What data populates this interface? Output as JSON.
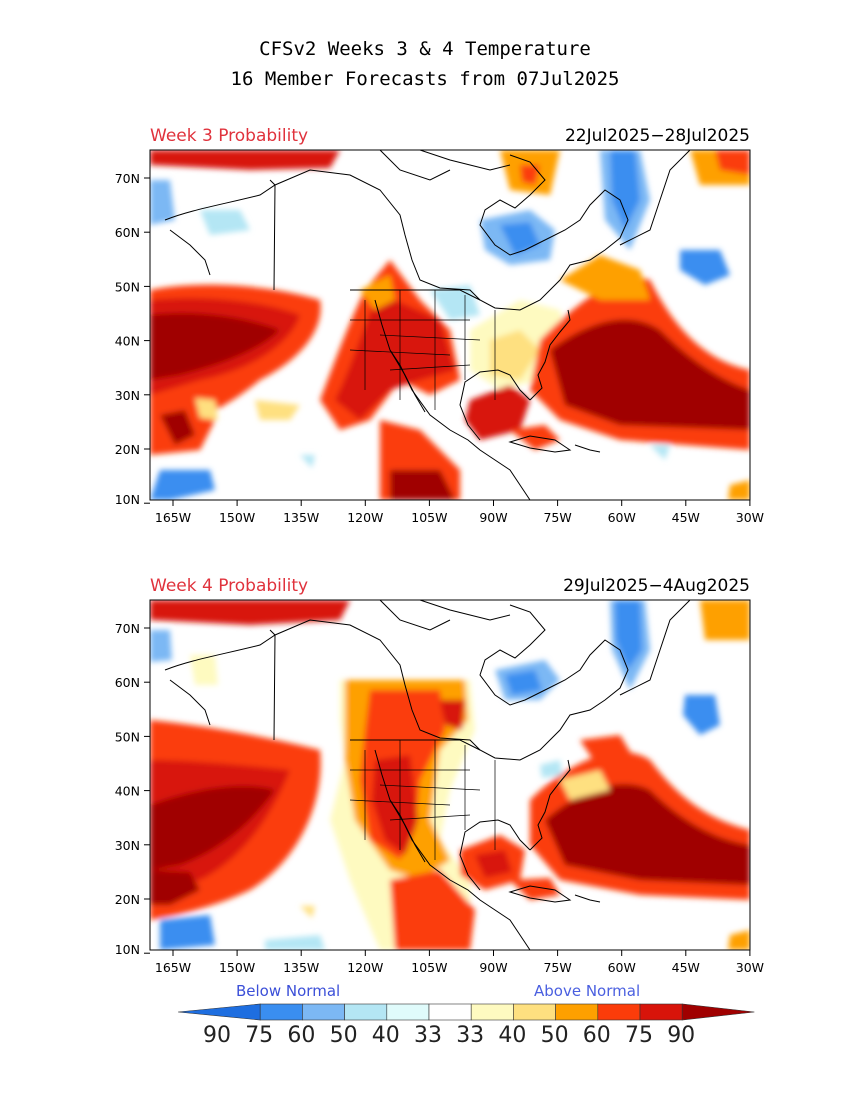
{
  "title": {
    "line1": "CFSv2 Weeks 3 & 4 Temperature",
    "line2": "16 Member Forecasts from 07Jul2025"
  },
  "panels": [
    {
      "label": "Week 3 Probability",
      "dates": "22Jul2025−28Jul2025",
      "lat_ticks": [
        "70N",
        "60N",
        "50N",
        "40N",
        "30N",
        "20N",
        "10N"
      ],
      "lon_ticks": [
        "165W",
        "150W",
        "135W",
        "120W",
        "105W",
        "90W",
        "75W",
        "60W",
        "45W",
        "30W"
      ]
    },
    {
      "label": "Week 4 Probability",
      "dates": "29Jul2025−4Aug2025",
      "lat_ticks": [
        "70N",
        "60N",
        "50N",
        "40N",
        "30N",
        "20N",
        "10N"
      ],
      "lon_ticks": [
        "165W",
        "150W",
        "135W",
        "120W",
        "105W",
        "90W",
        "75W",
        "60W",
        "45W",
        "30W"
      ]
    }
  ],
  "legend": {
    "below_label": "Below Normal",
    "above_label": "Above Normal",
    "values": [
      "90",
      "75",
      "60",
      "50",
      "40",
      "33",
      "33",
      "40",
      "50",
      "60",
      "75",
      "90"
    ],
    "colors": [
      "#1e6ee0",
      "#3a8ef0",
      "#7cb8f4",
      "#b4e6f4",
      "#e0fbfb",
      "#ffffff",
      "#fefac0",
      "#fee080",
      "#fea000",
      "#fb3c0a",
      "#d8140a",
      "#a00000"
    ],
    "below_color": "#3b4fd8",
    "above_color": "#4a5fe0",
    "title_label_color": "#e0323c"
  }
}
